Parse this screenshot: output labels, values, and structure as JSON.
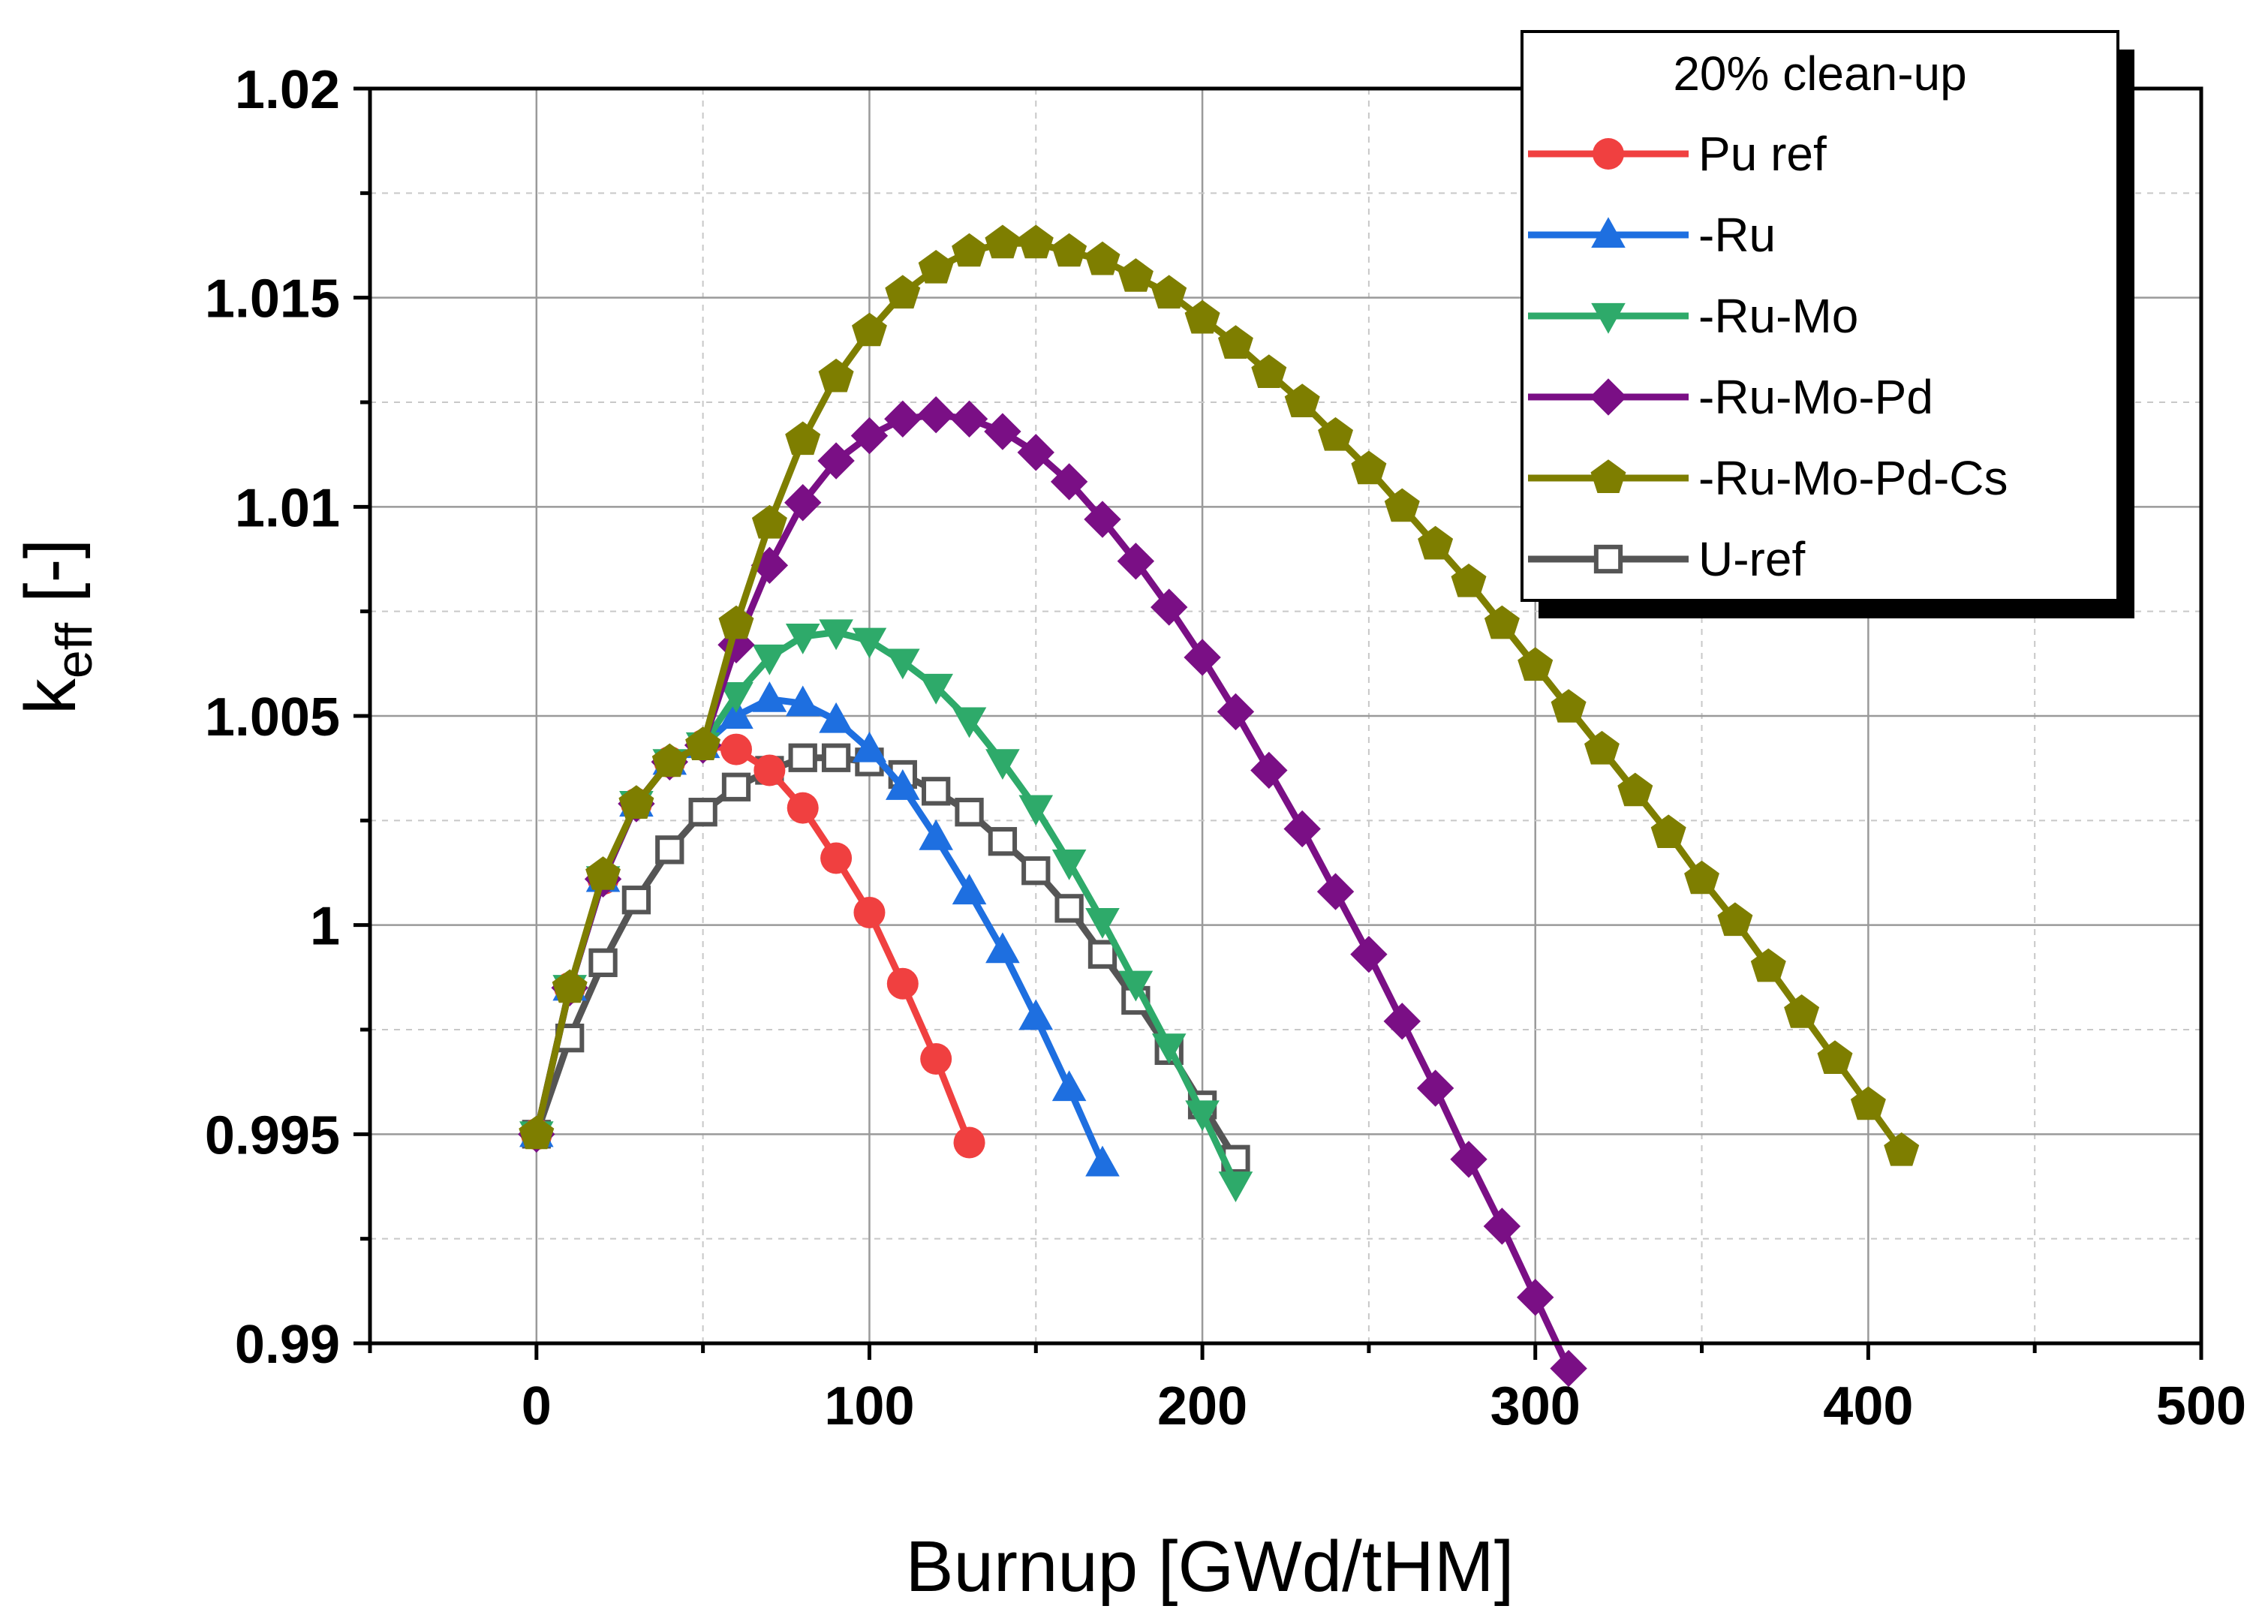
{
  "chart_data": {
    "type": "line",
    "title": "",
    "xlabel": "Burnup [GWd/tHM]",
    "ylabel_main": "k",
    "ylabel_sub": "eff",
    "ylabel_unit": " [-]",
    "xlim": [
      -50,
      500
    ],
    "ylim": [
      0.99,
      1.02
    ],
    "xticks": [
      0,
      100,
      200,
      300,
      400,
      500
    ],
    "xtick_labels": [
      "0",
      "100",
      "200",
      "300",
      "400",
      "500"
    ],
    "yticks": [
      0.99,
      0.995,
      1.0,
      1.005,
      1.01,
      1.015,
      1.02
    ],
    "ytick_labels": [
      "0.99",
      "0.995",
      "1",
      "1.005",
      "1.01",
      "1.015",
      "1.02"
    ],
    "grid": true,
    "legend": {
      "title": "20% clean-up",
      "position": "top-right"
    },
    "series": [
      {
        "name": "Pu ref",
        "color": "#f04040",
        "marker": "circle",
        "x": [
          0,
          10,
          20,
          30,
          40,
          50,
          60,
          70,
          80,
          90,
          100,
          110,
          120,
          130
        ],
        "y": [
          0.995,
          0.9985,
          1.0011,
          1.0029,
          1.0039,
          1.0043,
          1.0042,
          1.0037,
          1.0028,
          1.0016,
          1.0003,
          0.9986,
          0.9968,
          0.9948
        ]
      },
      {
        "name": "-Ru",
        "color": "#1e6fe0",
        "marker": "triangle-up",
        "x": [
          0,
          10,
          20,
          30,
          40,
          50,
          60,
          70,
          80,
          90,
          100,
          110,
          120,
          130,
          140,
          150,
          160,
          170
        ],
        "y": [
          0.995,
          0.9985,
          1.0011,
          1.0029,
          1.0039,
          1.0043,
          1.005,
          1.0054,
          1.0053,
          1.0049,
          1.0042,
          1.0033,
          1.0021,
          1.0008,
          0.9994,
          0.9978,
          0.9961,
          0.9943
        ]
      },
      {
        "name": "-Ru-Mo",
        "color": "#2eaa6a",
        "marker": "triangle-down",
        "x": [
          0,
          10,
          20,
          30,
          40,
          50,
          60,
          70,
          80,
          90,
          100,
          110,
          120,
          130,
          140,
          150,
          160,
          170,
          180,
          190,
          200,
          210
        ],
        "y": [
          0.995,
          0.9985,
          1.0011,
          1.0029,
          1.0039,
          1.0043,
          1.0055,
          1.0064,
          1.0069,
          1.007,
          1.0068,
          1.0063,
          1.0057,
          1.0049,
          1.0039,
          1.0028,
          1.0015,
          1.0001,
          0.9986,
          0.9971,
          0.9955,
          0.9938
        ]
      },
      {
        "name": "-Ru-Mo-Pd",
        "color": "#7a0f85",
        "marker": "diamond",
        "x": [
          0,
          10,
          20,
          30,
          40,
          50,
          60,
          70,
          80,
          90,
          100,
          110,
          120,
          130,
          140,
          150,
          160,
          170,
          180,
          190,
          200,
          210,
          220,
          230,
          240,
          250,
          260,
          270,
          280,
          290,
          300,
          310
        ],
        "y": [
          0.995,
          0.9985,
          1.0011,
          1.0029,
          1.0039,
          1.0043,
          1.0067,
          1.0086,
          1.0101,
          1.0111,
          1.0117,
          1.0121,
          1.0122,
          1.0121,
          1.0118,
          1.0113,
          1.0106,
          1.0097,
          1.0087,
          1.0076,
          1.0064,
          1.0051,
          1.0037,
          1.0023,
          1.0008,
          0.9993,
          0.9977,
          0.9961,
          0.9944,
          0.9928,
          0.9911,
          0.9894
        ]
      },
      {
        "name": "-Ru-Mo-Pd-Cs",
        "color": "#7e7e00",
        "marker": "pentagon",
        "x": [
          0,
          10,
          20,
          30,
          40,
          50,
          60,
          70,
          80,
          90,
          100,
          110,
          120,
          130,
          140,
          150,
          160,
          170,
          180,
          190,
          200,
          210,
          220,
          230,
          240,
          250,
          260,
          270,
          280,
          290,
          300,
          310,
          320,
          330,
          340,
          350,
          360,
          370,
          380,
          390,
          400,
          410
        ],
        "y": [
          0.995,
          0.9985,
          1.0012,
          1.0029,
          1.0039,
          1.0043,
          1.0072,
          1.0096,
          1.0116,
          1.0131,
          1.0142,
          1.0151,
          1.0157,
          1.0161,
          1.0163,
          1.0163,
          1.0161,
          1.0159,
          1.0155,
          1.0151,
          1.0145,
          1.0139,
          1.0132,
          1.0125,
          1.0117,
          1.0109,
          1.01,
          1.0091,
          1.0082,
          1.0072,
          1.0062,
          1.0052,
          1.0042,
          1.0032,
          1.0022,
          1.0011,
          1.0001,
          0.999,
          0.9979,
          0.9968,
          0.9957,
          0.9946
        ]
      },
      {
        "name": "U-ref",
        "color": "#555555",
        "marker": "square-open",
        "x": [
          0,
          10,
          20,
          30,
          40,
          50,
          60,
          70,
          80,
          90,
          100,
          110,
          120,
          130,
          140,
          150,
          160,
          170,
          180,
          190,
          200,
          210
        ],
        "y": [
          0.995,
          0.9973,
          0.9991,
          1.0006,
          1.0018,
          1.0027,
          1.0033,
          1.0037,
          1.004,
          1.004,
          1.0039,
          1.0036,
          1.0032,
          1.0027,
          1.002,
          1.0013,
          1.0004,
          0.9993,
          0.9982,
          0.997,
          0.9957,
          0.9944
        ]
      }
    ]
  }
}
